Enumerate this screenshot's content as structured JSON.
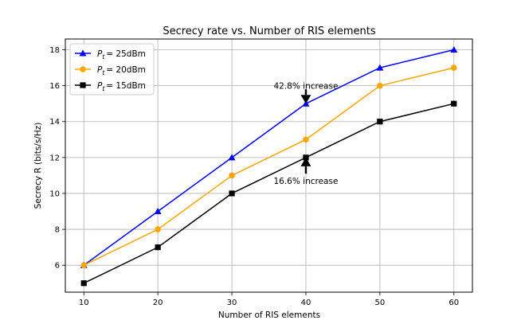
{
  "chart_data": {
    "type": "line",
    "title": "Secrecy rate vs. Number of RIS elements",
    "xlabel": "Number of RIS elements",
    "ylabel": "Secrecy R (bits/s/Hz)",
    "x": [
      10,
      20,
      30,
      40,
      50,
      60
    ],
    "xlim": [
      7.5,
      62.5
    ],
    "ylim": [
      4.5,
      18.6
    ],
    "xticks": [
      10,
      20,
      30,
      40,
      50,
      60
    ],
    "yticks": [
      6,
      8,
      10,
      12,
      14,
      16,
      18
    ],
    "grid": true,
    "legend_position": "top-left",
    "series": [
      {
        "name": "Pt = 25dBm",
        "legend_symbol": "P",
        "legend_subscript": "t",
        "legend_value": "= 25dBm",
        "color": "#0000ff",
        "marker": "triangle",
        "values": [
          6,
          9,
          12,
          15,
          17,
          18
        ]
      },
      {
        "name": "Pt = 20dBm",
        "legend_symbol": "P",
        "legend_subscript": "t",
        "legend_value": "= 20dBm",
        "color": "#ffa500",
        "marker": "circle",
        "values": [
          6,
          8,
          11,
          13,
          16,
          17
        ]
      },
      {
        "name": "Pt = 15dBm",
        "legend_symbol": "P",
        "legend_subscript": "t",
        "legend_value": "= 15dBm",
        "color": "#000000",
        "marker": "square",
        "values": [
          5,
          7,
          10,
          12,
          14,
          15
        ]
      }
    ],
    "annotations": [
      {
        "text": "42.8% increase",
        "x": 40,
        "text_y": 16.0,
        "arrow_from": 15.8,
        "arrow_to": 15.0
      },
      {
        "text": "16.6% increase",
        "x": 40,
        "text_y": 10.7,
        "arrow_from": 11.1,
        "arrow_to": 12.0
      }
    ]
  }
}
